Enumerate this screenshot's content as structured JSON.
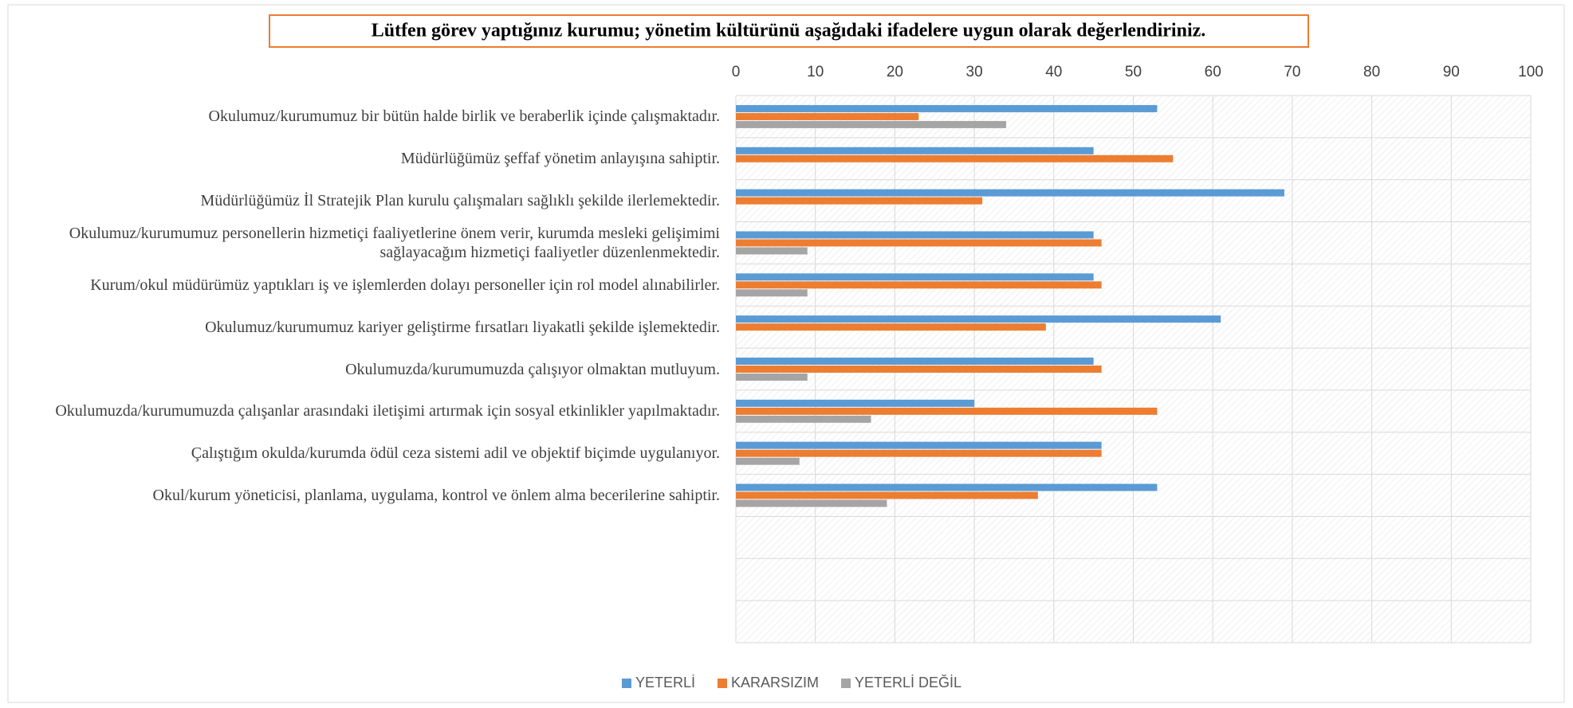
{
  "chart_data": {
    "type": "barh",
    "title": "Lütfen görev yaptığınız kurumu; yönetim kültürünü aşağıdaki ifadelere uygun olarak değerlendiriniz.",
    "categories": [
      "Okulumuz/kurumumuz bir bütün halde birlik ve beraberlik içinde çalışmaktadır.",
      "Müdürlüğümüz şeffaf yönetim anlayışına sahiptir.",
      "Müdürlüğümüz İl Stratejik Plan kurulu çalışmaları sağlıklı şekilde ilerlemektedir.",
      "Okulumuz/kurumumuz personellerin hizmetiçi faaliyetlerine önem verir, kurumda mesleki gelişimimi sağlayacağım hizmetiçi faaliyetler düzenlenmektedir.",
      "Kurum/okul müdürümüz yaptıkları iş ve işlemlerden dolayı personeller için rol model alınabilirler.",
      "Okulumuz/kurumumuz kariyer geliştirme fırsatları liyakatli şekilde işlemektedir.",
      "Okulumuzda/kurumumuzda çalışıyor olmaktan mutluyum.",
      "Okulumuzda/kurumumuzda çalışanlar arasındaki iletişimi artırmak için sosyal etkinlikler yapılmaktadır.",
      "Çalıştığım okulda/kurumda ödül ceza sistemi adil ve objektif biçimde uygulanıyor.",
      "Okul/kurum yöneticisi, planlama, uygulama, kontrol ve önlem alma becerilerine sahiptir.",
      null,
      null,
      null
    ],
    "series": [
      {
        "name": "YETERLİ",
        "color": "#5b9bd5",
        "values": [
          53,
          45,
          69,
          45,
          45,
          61,
          45,
          30,
          46,
          53,
          null,
          null,
          null
        ]
      },
      {
        "name": "KARARSIZIM",
        "color": "#ed7d31",
        "values": [
          23,
          55,
          31,
          46,
          46,
          39,
          46,
          53,
          46,
          38,
          null,
          null,
          null
        ]
      },
      {
        "name": "YETERLİ DEĞİL",
        "color": "#a5a5a5",
        "values": [
          34,
          null,
          null,
          9,
          9,
          null,
          9,
          17,
          8,
          19,
          null,
          null,
          null
        ]
      }
    ],
    "xlim": [
      0,
      100
    ],
    "xticks": [
      0,
      10,
      20,
      30,
      40,
      50,
      60,
      70,
      80,
      90,
      100
    ],
    "grid": true,
    "legend": "bottom"
  }
}
